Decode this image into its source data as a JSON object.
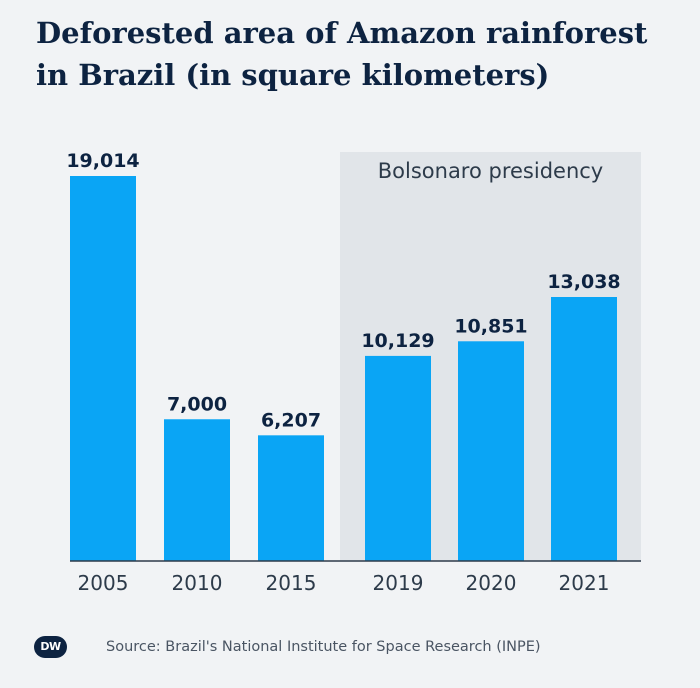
{
  "title": "Deforested area of Amazon rainforest in Brazil (in square kilometers)",
  "highlight_label": "Bolsonaro presidency",
  "source": "Source: Brazil's National Institute for Space Research (INPE)",
  "logo_text": "DW",
  "colors": {
    "bar": "#0aa5f5",
    "highlight_band": "#e1e5e9",
    "text_dark": "#0d2341",
    "axis": "#2d3b4a"
  },
  "chart_data": {
    "type": "bar",
    "title": "Deforested area of Amazon rainforest in Brazil (in square kilometers)",
    "categories": [
      "2005",
      "2010",
      "2015",
      "2019",
      "2020",
      "2021"
    ],
    "values": [
      19014,
      7000,
      6207,
      10129,
      10851,
      13038
    ],
    "value_labels": [
      "19,014",
      "7,000",
      "6,207",
      "10,129",
      "10,851",
      "13,038"
    ],
    "ylim": [
      0,
      19014
    ],
    "grid": false,
    "highlight": {
      "label": "Bolsonaro presidency",
      "categories": [
        "2019",
        "2020",
        "2021"
      ]
    }
  }
}
